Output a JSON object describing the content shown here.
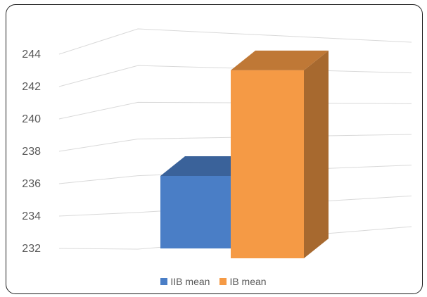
{
  "chart_data": {
    "type": "bar",
    "categories": [
      ""
    ],
    "series": [
      {
        "name": "IIB mean",
        "values": [
          236
        ]
      },
      {
        "name": "IB mean",
        "values": [
          242.6
        ]
      }
    ],
    "title": "",
    "xlabel": "",
    "ylabel": "",
    "ylim": [
      232,
      244
    ],
    "ticks": [
      "232",
      "234",
      "236",
      "238",
      "240",
      "242",
      "244"
    ],
    "grid": true,
    "legend": "bottom",
    "style": "3d-column",
    "colors": {
      "IIB mean": "#4a7ec6",
      "IB mean": "#f59a45",
      "gridline": "#d9d9d9",
      "axis_text": "#595959"
    }
  }
}
